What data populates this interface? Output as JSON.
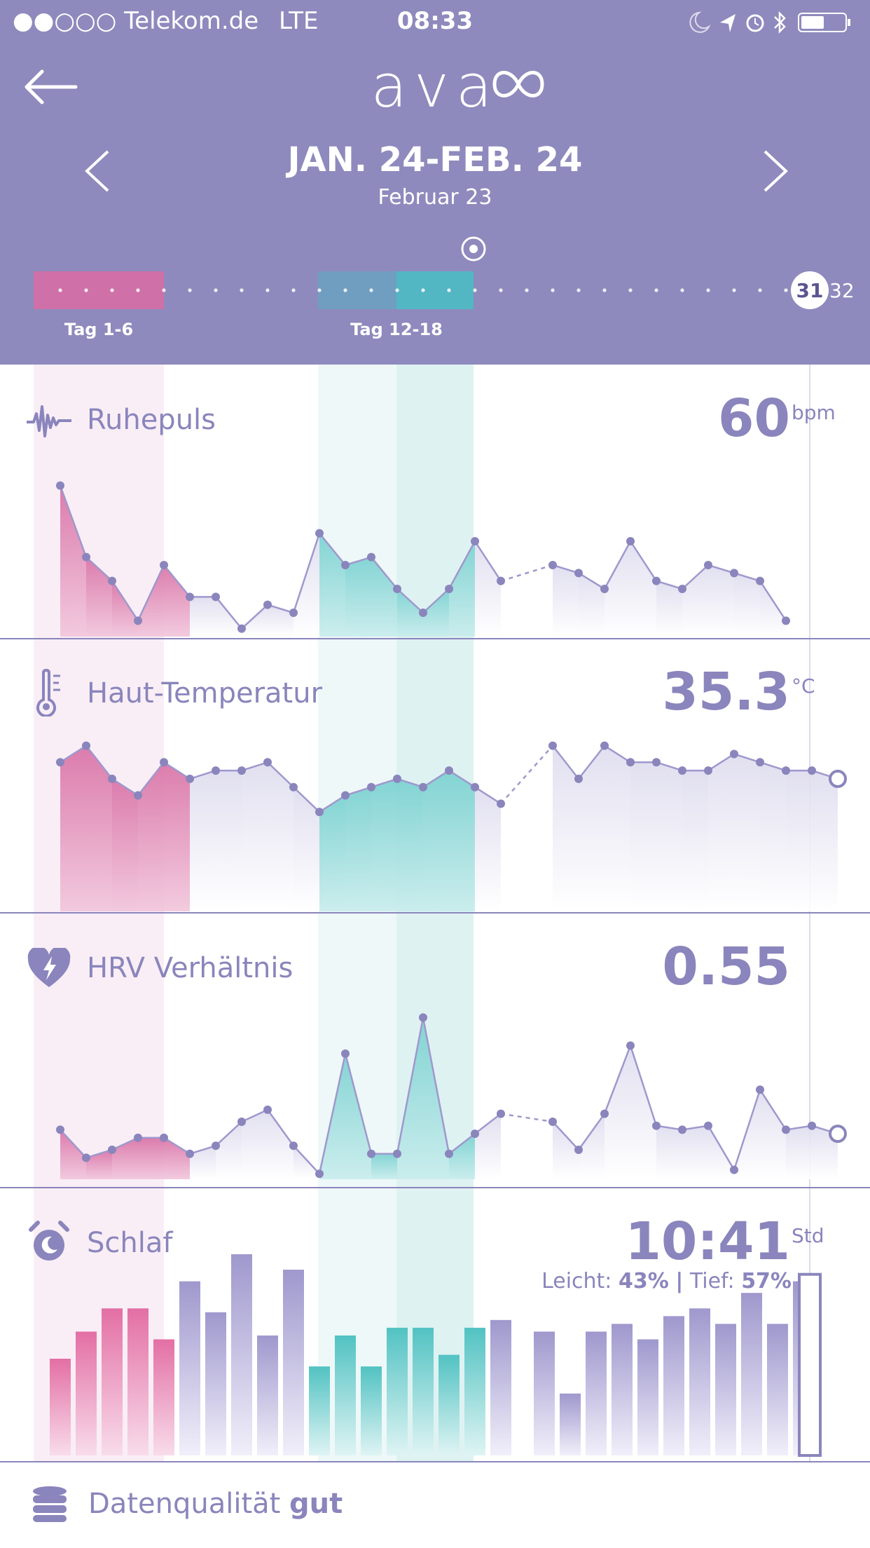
{
  "status_bar": {
    "carrier": "Telekom.de",
    "network": "LTE",
    "time": "08:33"
  },
  "header": {
    "logo": "ava",
    "date_range": "JAN. 24-FEB. 24",
    "selected_date": "Februar 23"
  },
  "cycle": {
    "current_day": "31",
    "next_day": "32",
    "phases": [
      {
        "label": "Tag 1-6"
      },
      {
        "label": "Tag 12-18"
      }
    ]
  },
  "panels": {
    "resting_pulse": {
      "title": "Ruhepuls",
      "value": "60",
      "unit": "bpm",
      "icon": "pulse-wave-icon"
    },
    "skin_temp": {
      "title": "Haut-Temperatur",
      "value": "35.3",
      "unit": "°C",
      "icon": "thermometer-icon"
    },
    "hrv": {
      "title": "HRV Verhältnis",
      "value": "0.55",
      "icon": "heart-bolt-icon"
    },
    "sleep": {
      "title": "Schlaf",
      "value": "10:41",
      "unit": "Std",
      "light_label": "Leicht:",
      "light_value": "43%",
      "deep_label": "Tief:",
      "deep_value": "57%",
      "icon": "alarm-clock-icon"
    }
  },
  "footer": {
    "label": "Datenqualität",
    "value": "gut",
    "icon": "database-icon"
  },
  "colors": {
    "header": "#8e8abd",
    "accent": "#8a85bc",
    "menstruation": "#d86fa4",
    "fertile": "#57c2c4"
  },
  "chart_data": [
    {
      "type": "line",
      "title": "Ruhepuls",
      "x": [
        1,
        2,
        3,
        4,
        5,
        6,
        7,
        8,
        9,
        10,
        11,
        12,
        13,
        14,
        15,
        16,
        17,
        18,
        20,
        21,
        22,
        23,
        24,
        25,
        26,
        27,
        28,
        29,
        30,
        31
      ],
      "values": [
        74,
        65,
        62,
        57,
        64,
        60,
        60,
        56,
        59,
        58,
        68,
        64,
        65,
        61,
        58,
        61,
        67,
        62,
        64,
        63,
        61,
        67,
        62,
        61,
        64,
        63,
        62,
        57,
        null,
        null
      ],
      "missing_days": [
        19
      ]
    },
    {
      "type": "line",
      "title": "Haut-Temperatur",
      "x": [
        1,
        2,
        3,
        4,
        5,
        6,
        7,
        8,
        9,
        10,
        11,
        12,
        13,
        14,
        15,
        16,
        17,
        18,
        20,
        21,
        22,
        23,
        24,
        25,
        26,
        27,
        28,
        29,
        30,
        31
      ],
      "values": [
        35.4,
        35.5,
        35.3,
        35.2,
        35.4,
        35.3,
        35.35,
        35.35,
        35.4,
        35.25,
        35.1,
        35.2,
        35.25,
        35.3,
        35.25,
        35.35,
        35.25,
        35.15,
        35.5,
        35.3,
        35.5,
        35.4,
        35.4,
        35.35,
        35.35,
        35.45,
        35.4,
        35.35,
        35.35,
        35.3
      ]
    },
    {
      "type": "line",
      "title": "HRV Verhältnis",
      "x": [
        1,
        2,
        3,
        4,
        5,
        6,
        7,
        8,
        9,
        10,
        11,
        12,
        13,
        14,
        15,
        16,
        17,
        18,
        20,
        21,
        22,
        23,
        24,
        25,
        26,
        27,
        28,
        29,
        30,
        31
      ],
      "values": [
        0.56,
        0.49,
        0.51,
        0.54,
        0.54,
        0.5,
        0.52,
        0.58,
        0.61,
        0.52,
        0.45,
        0.75,
        0.5,
        0.5,
        0.84,
        0.5,
        0.55,
        0.6,
        0.58,
        0.51,
        0.6,
        0.77,
        0.57,
        0.56,
        0.57,
        0.46,
        0.66,
        0.56,
        0.57,
        0.55
      ]
    },
    {
      "type": "bar",
      "title": "Schlaf",
      "x": [
        1,
        2,
        3,
        4,
        5,
        6,
        7,
        8,
        9,
        10,
        11,
        12,
        13,
        14,
        15,
        16,
        17,
        18,
        20,
        21,
        22,
        23,
        24,
        25,
        26,
        27,
        28,
        29,
        30,
        31
      ],
      "values": [
        8.5,
        9.2,
        9.8,
        9.8,
        9.0,
        10.5,
        9.7,
        11.2,
        9.1,
        10.8,
        8.3,
        9.1,
        8.3,
        9.3,
        9.3,
        8.6,
        9.3,
        9.5,
        9.2,
        7.6,
        9.2,
        9.4,
        9.0,
        9.6,
        9.8,
        9.4,
        10.2,
        9.4,
        10.5,
        10.68
      ]
    }
  ]
}
